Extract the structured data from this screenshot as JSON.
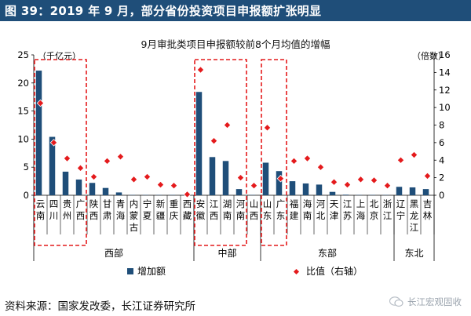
{
  "header": {
    "title": "图 39：2019 年 9 月，部分省份投资项目申报额扩张明显"
  },
  "footer": {
    "source": "资料来源：国家发改委，长江证券研究所"
  },
  "watermark": {
    "text": "长江宏观固收",
    "icon": "wechat-icon"
  },
  "colors": {
    "header_bg": "#1f4e79",
    "bar": "#1f4e79",
    "dot": "#e41a1c",
    "box": "#e41a1c"
  },
  "chart_data": {
    "type": "bar",
    "title": "9月审批类项目申报额较前8个月均值的增幅",
    "left_axis_unit": "（千亿元）",
    "right_axis_unit": "（倍数）",
    "left_ylim": [
      0,
      25
    ],
    "left_ticks": [
      "0",
      "5",
      "10",
      "15",
      "20",
      "25"
    ],
    "right_ylim": [
      0,
      16
    ],
    "right_ticks": [
      "0",
      "2",
      "4",
      "6",
      "8",
      "10",
      "12",
      "14",
      "16"
    ],
    "categories": [
      "云南",
      "四川",
      "贵州",
      "广西",
      "陕西",
      "甘肃",
      "青海",
      "内蒙古",
      "宁夏",
      "新疆",
      "重庆",
      "西藏",
      "安徽",
      "江西",
      "湖南",
      "河南",
      "山西",
      "山东",
      "广东",
      "福建",
      "海南",
      "河北",
      "天津",
      "江苏",
      "上海",
      "北京",
      "浙江",
      "辽宁",
      "黑龙江",
      "吉林"
    ],
    "series": [
      {
        "name": "增加额",
        "axis": "left",
        "values": [
          22.2,
          10.4,
          4.2,
          2.8,
          2.2,
          1.3,
          0.5,
          0.05,
          0.05,
          0.05,
          0.05,
          0.05,
          18.4,
          6.8,
          6.1,
          1.1,
          0.05,
          5.8,
          4.3,
          2.5,
          2.1,
          1.9,
          0.6,
          0.1,
          0.05,
          0.05,
          0.05,
          1.5,
          1.4,
          1.1
        ]
      },
      {
        "name": "比值（右轴）",
        "axis": "right",
        "values": [
          10.5,
          6.0,
          4.2,
          3.1,
          2.1,
          3.9,
          4.4,
          1.8,
          2.1,
          1.2,
          1.1,
          0.1,
          14.3,
          6.2,
          8.0,
          2.0,
          1.1,
          7.7,
          1.9,
          3.9,
          4.2,
          3.2,
          1.5,
          1.2,
          1.8,
          1.7,
          1.1,
          4.0,
          4.6,
          2.2
        ]
      }
    ],
    "regions": [
      {
        "name": "西部",
        "from": 0,
        "to": 11
      },
      {
        "name": "中部",
        "from": 12,
        "to": 16
      },
      {
        "name": "东部",
        "from": 17,
        "to": 26
      },
      {
        "name": "东北",
        "from": 27,
        "to": 29
      }
    ],
    "highlight_boxes": [
      {
        "from": 0,
        "to": 3
      },
      {
        "from": 12,
        "to": 15
      },
      {
        "from": 17,
        "to": 18
      }
    ],
    "legend": {
      "position": "bottom"
    },
    "grid": false
  }
}
